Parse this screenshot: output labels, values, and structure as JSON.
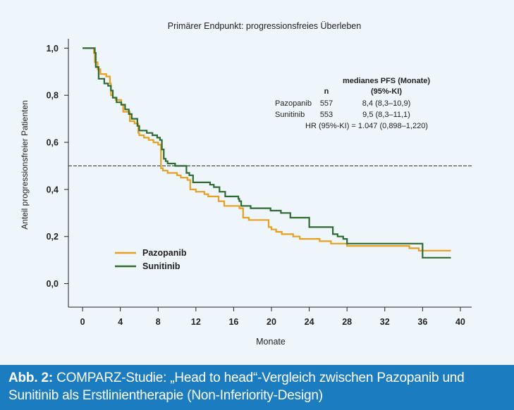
{
  "chart_data": {
    "type": "line",
    "title": "Primärer Endpunkt: progressionsfreies Überleben",
    "xlabel": "Monate",
    "ylabel": "Anteil progressionsfreier Patienten",
    "xlim": [
      -1.5,
      41.2
    ],
    "ylim": [
      -0.1,
      1.04
    ],
    "xticks": [
      0,
      4,
      8,
      12,
      16,
      20,
      24,
      28,
      32,
      36,
      40
    ],
    "xtick_labels": [
      "0",
      "4",
      "8",
      "12",
      "16",
      "20",
      "24",
      "28",
      "32",
      "36",
      "40"
    ],
    "yticks": [
      0.0,
      0.2,
      0.4,
      0.6,
      0.8,
      1.0
    ],
    "ytick_labels": [
      "0,0",
      "0,2",
      "0,4",
      "0,6",
      "0,8",
      "1,0"
    ],
    "reference_line": 0.5,
    "legend_position": "bottom-left",
    "series": [
      {
        "name": "Pazopanib",
        "color": "#e8a020",
        "x": [
          0,
          1.2,
          1.3,
          1.6,
          1.9,
          2.5,
          2.9,
          3.0,
          3.2,
          3.5,
          4.0,
          4.1,
          4.3,
          5.0,
          5.5,
          5.9,
          6.0,
          6.5,
          7.0,
          7.5,
          8.0,
          8.3,
          8.5,
          9.0,
          10.0,
          10.4,
          11.1,
          11.4,
          12.0,
          12.3,
          12.9,
          13.3,
          13.8,
          14.4,
          15.0,
          16.6,
          17.0,
          17.6,
          18.6,
          19.7,
          20.0,
          20.5,
          21.1,
          21.7,
          22.3,
          23.0,
          24.0,
          25.1,
          26.3,
          27.0,
          28.0,
          33.2,
          34.6,
          35.6,
          36.0,
          37.0,
          38.0,
          39.0
        ],
        "y": [
          1.0,
          0.98,
          0.94,
          0.91,
          0.89,
          0.88,
          0.85,
          0.8,
          0.79,
          0.78,
          0.78,
          0.76,
          0.73,
          0.69,
          0.68,
          0.64,
          0.63,
          0.62,
          0.61,
          0.6,
          0.59,
          0.49,
          0.48,
          0.47,
          0.46,
          0.45,
          0.44,
          0.4,
          0.39,
          0.39,
          0.38,
          0.37,
          0.37,
          0.35,
          0.33,
          0.32,
          0.28,
          0.27,
          0.27,
          0.24,
          0.23,
          0.22,
          0.21,
          0.21,
          0.2,
          0.19,
          0.19,
          0.18,
          0.17,
          0.17,
          0.16,
          0.16,
          0.15,
          0.14,
          0.14,
          0.14,
          0.14,
          0.14
        ]
      },
      {
        "name": "Sunitinib",
        "color": "#2f6a30",
        "x": [
          0,
          1.3,
          1.4,
          1.7,
          2.3,
          2.7,
          3.0,
          3.2,
          3.6,
          4.1,
          4.5,
          4.9,
          5.2,
          5.8,
          6.0,
          6.8,
          7.4,
          7.9,
          8.2,
          8.4,
          8.6,
          8.8,
          9.0,
          9.8,
          10.1,
          10.8,
          11.0,
          11.3,
          11.7,
          13.1,
          13.5,
          13.9,
          14.5,
          15.1,
          16.5,
          16.6,
          16.8,
          17.8,
          19.9,
          21.0,
          22.0,
          22.3,
          23.0,
          24.0,
          25.2,
          26.5,
          27.0,
          27.6,
          28.0,
          35.8,
          36.0,
          39.0
        ],
        "y": [
          1.0,
          0.98,
          0.92,
          0.87,
          0.85,
          0.84,
          0.82,
          0.79,
          0.77,
          0.76,
          0.74,
          0.72,
          0.7,
          0.67,
          0.65,
          0.64,
          0.63,
          0.62,
          0.61,
          0.57,
          0.53,
          0.52,
          0.51,
          0.5,
          0.5,
          0.5,
          0.47,
          0.46,
          0.43,
          0.43,
          0.42,
          0.41,
          0.39,
          0.37,
          0.36,
          0.35,
          0.33,
          0.32,
          0.31,
          0.3,
          0.28,
          0.28,
          0.28,
          0.24,
          0.24,
          0.21,
          0.2,
          0.19,
          0.17,
          0.17,
          0.11,
          0.11
        ]
      }
    ],
    "annotation": {
      "header_col1": "n",
      "header_col2_line1": "medianes PFS (Monate)",
      "header_col2_line2": "(95%-KI)",
      "rows": [
        {
          "name": "Pazopanib",
          "n": "557",
          "pfs": "8,4 (8,3–10,9)"
        },
        {
          "name": "Sunitinib",
          "n": "553",
          "pfs": "9,5 (8,3–11,1)"
        }
      ],
      "hr": "HR (95%-KI) = 1.047 (0,898–1,220)"
    }
  },
  "caption": {
    "label": "Abb. 2:",
    "text": " COMPARZ-Studie: „Head to head“-Vergleich zwischen Pazopanib und Sunitinib als Erstlinientherapie (Non-Inferiority-Design)"
  }
}
